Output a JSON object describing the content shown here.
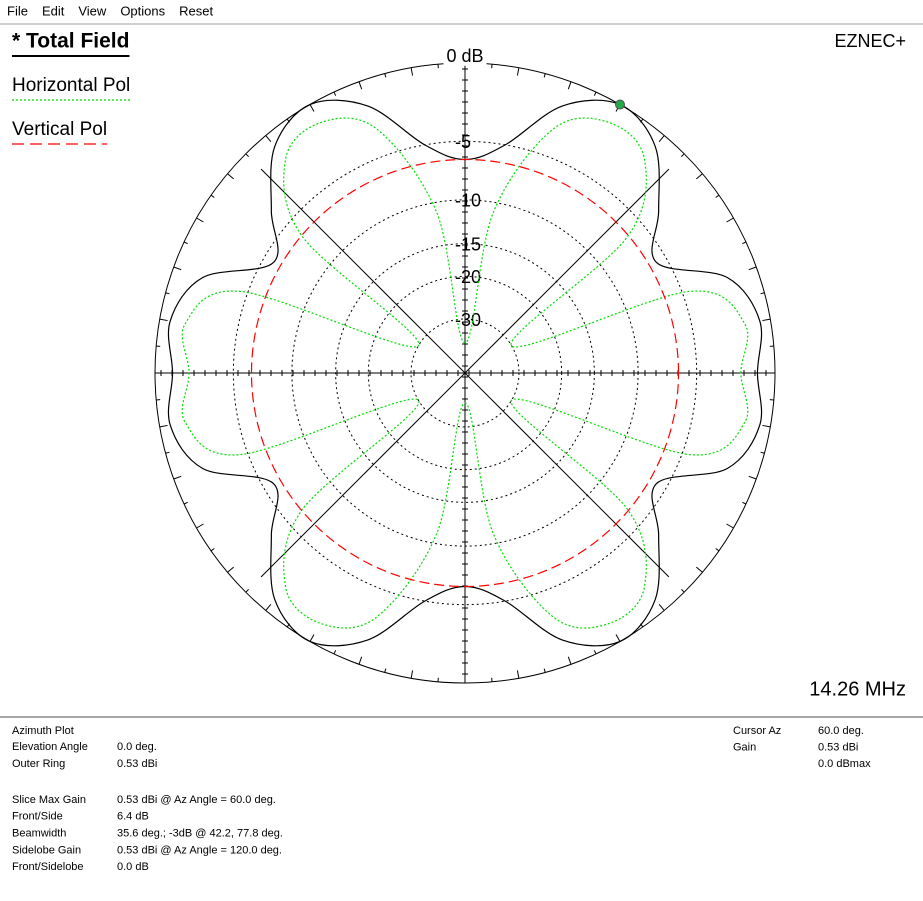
{
  "menu": [
    "File",
    "Edit",
    "View",
    "Options",
    "Reset"
  ],
  "chart_data": {
    "type": "polar",
    "brand": "EZNEC+",
    "frequency": "14.26 MHz",
    "rscale": "arrl-log",
    "rticks": [
      {
        "value": 0,
        "label": "0 dB"
      },
      -5,
      -10,
      -15,
      -20,
      -30
    ],
    "x": [
      0,
      10,
      20,
      30,
      40,
      50,
      60,
      70,
      80,
      90,
      100,
      110,
      120,
      130,
      140,
      150,
      160,
      170,
      180,
      190,
      200,
      210,
      220,
      230,
      240,
      250,
      260,
      270,
      280,
      290,
      300,
      310,
      320,
      330,
      340,
      350
    ],
    "series": [
      {
        "name": "* Total Field",
        "color": "#000000",
        "dash": "solid",
        "values": [
          -1.0,
          -0.6,
          -1.8,
          -5.8,
          -3.5,
          -0.8,
          0,
          -1.5,
          -5.0,
          -6.4,
          -5.0,
          -1.5,
          0,
          -0.8,
          -3.5,
          -5.8,
          -1.8,
          -0.6,
          -1.0,
          -0.6,
          -1.8,
          -5.8,
          -3.5,
          -0.8,
          0,
          -1.5,
          -5.0,
          -6.4,
          -5.0,
          -1.5,
          0,
          -0.8,
          -3.5,
          -5.8,
          -1.8,
          -0.6
        ]
      },
      {
        "name": "Horizontal Pol",
        "color": "#00dd00",
        "dash": "dotted",
        "values": [
          -2.0,
          -1.5,
          -4.5,
          -30,
          -6.5,
          -1.8,
          -1.2,
          -3.0,
          -11,
          -40,
          -11,
          -3.0,
          -1.2,
          -1.8,
          -6.5,
          -30,
          -4.5,
          -1.5,
          -2.0,
          -1.5,
          -4.5,
          -30,
          -6.5,
          -1.8,
          -1.2,
          -3.0,
          -11,
          -40,
          -11,
          -3.0,
          -1.2,
          -1.8,
          -6.5,
          -30,
          -4.5,
          -1.5
        ]
      },
      {
        "name": "Vertical Pol",
        "color": "#ff0000",
        "dash": "dashed",
        "values": [
          -6.4,
          -6.4,
          -6.4,
          -6.4,
          -6.4,
          -6.4,
          -6.4,
          -6.4,
          -6.4,
          -6.4,
          -6.4,
          -6.4,
          -6.4,
          -6.4,
          -6.4,
          -6.4,
          -6.4,
          -6.4,
          -6.4,
          -6.4,
          -6.4,
          -6.4,
          -6.4,
          -6.4,
          -6.4,
          -6.4,
          -6.4,
          -6.4,
          -6.4,
          -6.4,
          -6.4,
          -6.4,
          -6.4,
          -6.4,
          -6.4,
          -6.4
        ]
      }
    ],
    "cursor": {
      "angle": 60,
      "value": 0,
      "color": "#22aa44"
    }
  },
  "info": {
    "plot": "Azimuth Plot",
    "rows": [
      [
        "Elevation Angle",
        "0.0 deg."
      ],
      [
        "Outer Ring",
        "0.53 dBi"
      ]
    ],
    "stats": [
      [
        "Slice Max Gain",
        "0.53 dBi @ Az Angle = 60.0 deg."
      ],
      [
        "Front/Side",
        "6.4 dB"
      ],
      [
        "Beamwidth",
        "35.6 deg.; -3dB @ 42.2, 77.8 deg."
      ],
      [
        "Sidelobe Gain",
        "0.53 dBi @ Az Angle = 120.0 deg."
      ],
      [
        "Front/Sidelobe",
        "0.0 dB"
      ]
    ],
    "cursor": [
      {
        "label": "Cursor Az",
        "value": "60.0 deg."
      },
      {
        "label": "Gain",
        "value": "0.53 dBi"
      },
      {
        "value": "0.0 dBmax"
      }
    ]
  }
}
